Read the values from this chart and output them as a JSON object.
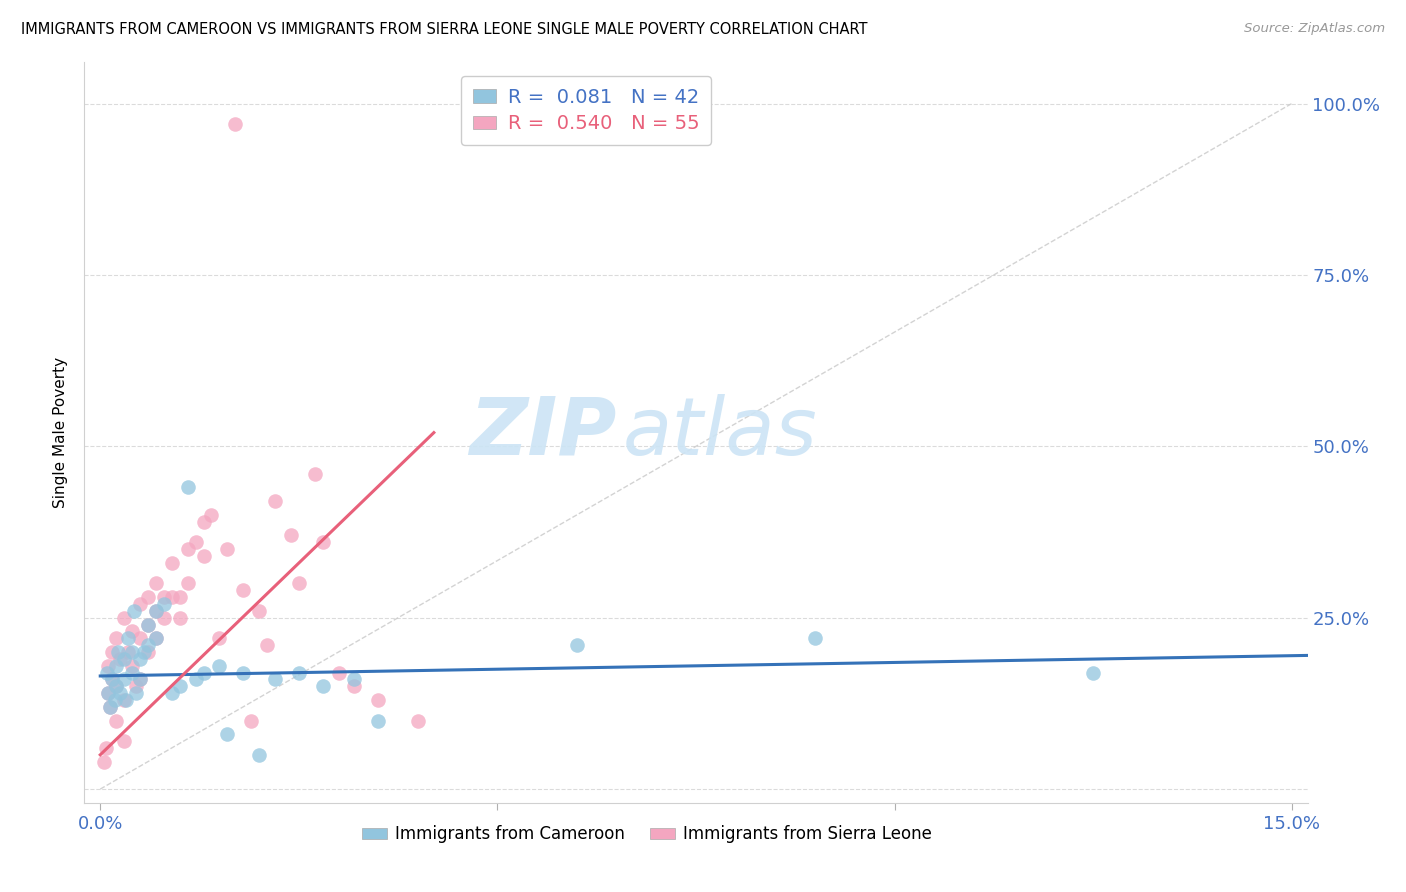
{
  "title": "IMMIGRANTS FROM CAMEROON VS IMMIGRANTS FROM SIERRA LEONE SINGLE MALE POVERTY CORRELATION CHART",
  "source": "Source: ZipAtlas.com",
  "ylabel": "Single Male Poverty",
  "xlim": [
    -0.002,
    0.152
  ],
  "ylim": [
    -0.02,
    1.06
  ],
  "xticks": [
    0.0,
    0.05,
    0.1,
    0.15
  ],
  "xticklabels": [
    "0.0%",
    "",
    "",
    "15.0%"
  ],
  "yticks_right": [
    0.0,
    0.25,
    0.5,
    0.75,
    1.0
  ],
  "yticklabels_right": [
    "",
    "25.0%",
    "50.0%",
    "75.0%",
    "100.0%"
  ],
  "color_cameroon": "#92c5de",
  "color_sierra": "#f4a6c0",
  "color_line_cameroon": "#3572b8",
  "color_line_sierra": "#e8607a",
  "color_diagonal": "#c8c8c8",
  "watermark_zip": "ZIP",
  "watermark_atlas": "atlas",
  "legend_cameroon": "Immigrants from Cameroon",
  "legend_sierra": "Immigrants from Sierra Leone",
  "R_cameroon": 0.081,
  "N_cameroon": 42,
  "R_sierra": 0.54,
  "N_sierra": 55,
  "cam_x": [
    0.0008,
    0.001,
    0.0012,
    0.0015,
    0.0018,
    0.002,
    0.002,
    0.0022,
    0.0025,
    0.003,
    0.003,
    0.0032,
    0.0035,
    0.004,
    0.004,
    0.0042,
    0.0045,
    0.005,
    0.005,
    0.0055,
    0.006,
    0.006,
    0.007,
    0.007,
    0.008,
    0.009,
    0.01,
    0.011,
    0.012,
    0.013,
    0.015,
    0.016,
    0.018,
    0.02,
    0.022,
    0.025,
    0.028,
    0.032,
    0.035,
    0.06,
    0.09,
    0.125
  ],
  "cam_y": [
    0.17,
    0.14,
    0.12,
    0.16,
    0.13,
    0.18,
    0.15,
    0.2,
    0.14,
    0.19,
    0.16,
    0.13,
    0.22,
    0.17,
    0.2,
    0.26,
    0.14,
    0.19,
    0.16,
    0.2,
    0.24,
    0.21,
    0.26,
    0.22,
    0.27,
    0.14,
    0.15,
    0.44,
    0.16,
    0.17,
    0.18,
    0.08,
    0.17,
    0.05,
    0.16,
    0.17,
    0.15,
    0.16,
    0.1,
    0.21,
    0.22,
    0.17
  ],
  "sle_x": [
    0.0005,
    0.0007,
    0.001,
    0.001,
    0.0012,
    0.0015,
    0.0015,
    0.002,
    0.002,
    0.002,
    0.0025,
    0.003,
    0.003,
    0.003,
    0.0035,
    0.004,
    0.004,
    0.0045,
    0.005,
    0.005,
    0.005,
    0.006,
    0.006,
    0.006,
    0.007,
    0.007,
    0.007,
    0.008,
    0.008,
    0.009,
    0.009,
    0.01,
    0.01,
    0.011,
    0.011,
    0.012,
    0.013,
    0.013,
    0.014,
    0.015,
    0.016,
    0.017,
    0.018,
    0.019,
    0.02,
    0.021,
    0.022,
    0.024,
    0.025,
    0.027,
    0.028,
    0.03,
    0.032,
    0.035,
    0.04
  ],
  "sle_y": [
    0.04,
    0.06,
    0.14,
    0.18,
    0.12,
    0.16,
    0.2,
    0.1,
    0.22,
    0.15,
    0.19,
    0.07,
    0.13,
    0.25,
    0.2,
    0.18,
    0.23,
    0.15,
    0.22,
    0.27,
    0.16,
    0.24,
    0.28,
    0.2,
    0.26,
    0.3,
    0.22,
    0.28,
    0.25,
    0.33,
    0.28,
    0.28,
    0.25,
    0.35,
    0.3,
    0.36,
    0.39,
    0.34,
    0.4,
    0.22,
    0.35,
    0.97,
    0.29,
    0.1,
    0.26,
    0.21,
    0.42,
    0.37,
    0.3,
    0.46,
    0.36,
    0.17,
    0.15,
    0.13,
    0.1
  ],
  "cam_line_x": [
    0.0,
    0.152
  ],
  "cam_line_y": [
    0.165,
    0.195
  ],
  "sle_line_x": [
    0.0,
    0.042
  ],
  "sle_line_y": [
    0.05,
    0.52
  ]
}
